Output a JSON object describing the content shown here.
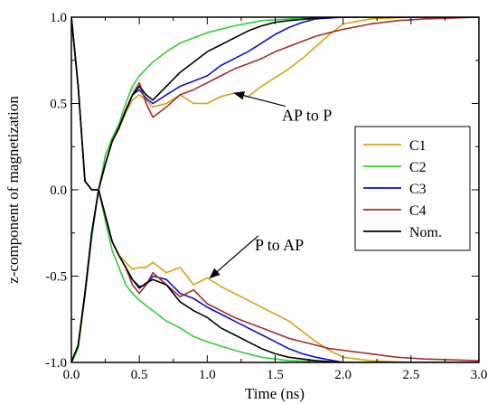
{
  "chart_data": {
    "type": "line",
    "xlabel": "Time (ns)",
    "ylabel": "z-component of magnetization",
    "xlim": [
      0,
      3
    ],
    "ylim": [
      -1,
      1
    ],
    "grid": false,
    "x_ticks": [
      "0.0",
      "0.5",
      "1.0",
      "1.5",
      "2.0",
      "2.5",
      "3.0"
    ],
    "y_ticks": [
      "1.0",
      "0.5",
      "0.0",
      "-0.5",
      "-1.0"
    ],
    "legend": {
      "placement": "right",
      "entries": [
        {
          "name": "C1",
          "color": "#d4a017"
        },
        {
          "name": "C2",
          "color": "#33cc33"
        },
        {
          "name": "C3",
          "color": "#1010cc"
        },
        {
          "name": "C4",
          "color": "#a0302a"
        },
        {
          "name": "Nom.",
          "color": "#000000"
        }
      ]
    },
    "annotations": [
      {
        "text": "AP to P",
        "x": 1.55,
        "y": 0.4,
        "arrow_to": [
          1.2,
          0.56
        ]
      },
      {
        "text": "P to AP",
        "x": 1.35,
        "y": -0.35,
        "arrow_to": [
          1.02,
          -0.51
        ]
      }
    ],
    "series": [
      {
        "name": "C1",
        "color": "#d4a017",
        "transition": "AP to P",
        "points": [
          [
            0,
            -1
          ],
          [
            0.05,
            -0.9
          ],
          [
            0.1,
            -0.6
          ],
          [
            0.15,
            -0.25
          ],
          [
            0.2,
            0
          ],
          [
            0.25,
            0.15
          ],
          [
            0.3,
            0.28
          ],
          [
            0.35,
            0.35
          ],
          [
            0.4,
            0.45
          ],
          [
            0.45,
            0.52
          ],
          [
            0.5,
            0.55
          ],
          [
            0.55,
            0.52
          ],
          [
            0.6,
            0.48
          ],
          [
            0.7,
            0.5
          ],
          [
            0.8,
            0.55
          ],
          [
            0.9,
            0.5
          ],
          [
            1.0,
            0.5
          ],
          [
            1.1,
            0.54
          ],
          [
            1.2,
            0.56
          ],
          [
            1.3,
            0.54
          ],
          [
            1.4,
            0.6
          ],
          [
            1.5,
            0.65
          ],
          [
            1.6,
            0.7
          ],
          [
            1.7,
            0.76
          ],
          [
            1.8,
            0.83
          ],
          [
            1.9,
            0.9
          ],
          [
            2.0,
            0.96
          ],
          [
            2.2,
            0.99
          ],
          [
            2.5,
            1
          ],
          [
            3,
            1
          ]
        ]
      },
      {
        "name": "C2",
        "color": "#33cc33",
        "transition": "AP to P",
        "points": [
          [
            0,
            -1
          ],
          [
            0.05,
            -0.92
          ],
          [
            0.1,
            -0.62
          ],
          [
            0.15,
            -0.28
          ],
          [
            0.2,
            0
          ],
          [
            0.25,
            0.2
          ],
          [
            0.3,
            0.3
          ],
          [
            0.35,
            0.38
          ],
          [
            0.4,
            0.5
          ],
          [
            0.45,
            0.6
          ],
          [
            0.5,
            0.66
          ],
          [
            0.6,
            0.74
          ],
          [
            0.7,
            0.8
          ],
          [
            0.8,
            0.85
          ],
          [
            0.9,
            0.88
          ],
          [
            1.0,
            0.91
          ],
          [
            1.2,
            0.95
          ],
          [
            1.4,
            0.98
          ],
          [
            1.6,
            0.99
          ],
          [
            2.0,
            1
          ],
          [
            3,
            1
          ]
        ]
      },
      {
        "name": "C3",
        "color": "#1010cc",
        "transition": "AP to P",
        "points": [
          [
            0,
            -1
          ],
          [
            0.05,
            -0.9
          ],
          [
            0.1,
            -0.6
          ],
          [
            0.15,
            -0.25
          ],
          [
            0.2,
            0
          ],
          [
            0.25,
            0.15
          ],
          [
            0.3,
            0.28
          ],
          [
            0.35,
            0.36
          ],
          [
            0.4,
            0.46
          ],
          [
            0.45,
            0.55
          ],
          [
            0.5,
            0.58
          ],
          [
            0.55,
            0.53
          ],
          [
            0.6,
            0.5
          ],
          [
            0.7,
            0.55
          ],
          [
            0.8,
            0.6
          ],
          [
            0.9,
            0.63
          ],
          [
            1.0,
            0.66
          ],
          [
            1.1,
            0.72
          ],
          [
            1.2,
            0.76
          ],
          [
            1.3,
            0.8
          ],
          [
            1.4,
            0.85
          ],
          [
            1.5,
            0.9
          ],
          [
            1.6,
            0.94
          ],
          [
            1.7,
            0.97
          ],
          [
            1.8,
            0.99
          ],
          [
            2.0,
            1
          ],
          [
            3,
            1
          ]
        ]
      },
      {
        "name": "C4",
        "color": "#a0302a",
        "transition": "AP to P",
        "points": [
          [
            0,
            -1
          ],
          [
            0.05,
            -0.9
          ],
          [
            0.1,
            -0.6
          ],
          [
            0.15,
            -0.25
          ],
          [
            0.2,
            0
          ],
          [
            0.25,
            0.15
          ],
          [
            0.3,
            0.28
          ],
          [
            0.35,
            0.36
          ],
          [
            0.4,
            0.45
          ],
          [
            0.45,
            0.55
          ],
          [
            0.5,
            0.62
          ],
          [
            0.55,
            0.5
          ],
          [
            0.6,
            0.42
          ],
          [
            0.7,
            0.48
          ],
          [
            0.8,
            0.55
          ],
          [
            0.9,
            0.58
          ],
          [
            1.0,
            0.62
          ],
          [
            1.1,
            0.66
          ],
          [
            1.2,
            0.7
          ],
          [
            1.3,
            0.73
          ],
          [
            1.4,
            0.76
          ],
          [
            1.5,
            0.8
          ],
          [
            1.6,
            0.83
          ],
          [
            1.7,
            0.86
          ],
          [
            1.8,
            0.89
          ],
          [
            1.9,
            0.91
          ],
          [
            2.0,
            0.93
          ],
          [
            2.2,
            0.96
          ],
          [
            2.4,
            0.98
          ],
          [
            2.6,
            0.99
          ],
          [
            3,
            1
          ]
        ]
      },
      {
        "name": "Nom.",
        "color": "#000000",
        "transition": "AP to P",
        "points": [
          [
            0,
            -1
          ],
          [
            0.05,
            -0.9
          ],
          [
            0.1,
            -0.6
          ],
          [
            0.15,
            -0.25
          ],
          [
            0.2,
            0
          ],
          [
            0.25,
            0.15
          ],
          [
            0.3,
            0.28
          ],
          [
            0.35,
            0.36
          ],
          [
            0.4,
            0.46
          ],
          [
            0.45,
            0.55
          ],
          [
            0.5,
            0.6
          ],
          [
            0.55,
            0.55
          ],
          [
            0.6,
            0.52
          ],
          [
            0.7,
            0.6
          ],
          [
            0.8,
            0.68
          ],
          [
            0.9,
            0.74
          ],
          [
            1.0,
            0.8
          ],
          [
            1.1,
            0.84
          ],
          [
            1.2,
            0.88
          ],
          [
            1.3,
            0.92
          ],
          [
            1.4,
            0.95
          ],
          [
            1.5,
            0.97
          ],
          [
            1.6,
            0.98
          ],
          [
            1.8,
            0.995
          ],
          [
            2.0,
            1
          ],
          [
            3,
            1
          ]
        ]
      },
      {
        "name": "C1",
        "color": "#d4a017",
        "transition": "P to AP",
        "points": [
          [
            0,
            1
          ],
          [
            0.05,
            0.6
          ],
          [
            0.1,
            0.05
          ],
          [
            0.15,
            0.0
          ],
          [
            0.2,
            0
          ],
          [
            0.25,
            -0.15
          ],
          [
            0.3,
            -0.3
          ],
          [
            0.35,
            -0.38
          ],
          [
            0.4,
            -0.42
          ],
          [
            0.45,
            -0.46
          ],
          [
            0.5,
            -0.45
          ],
          [
            0.55,
            -0.45
          ],
          [
            0.6,
            -0.42
          ],
          [
            0.7,
            -0.48
          ],
          [
            0.8,
            -0.45
          ],
          [
            0.9,
            -0.55
          ],
          [
            1.0,
            -0.51
          ],
          [
            1.1,
            -0.56
          ],
          [
            1.2,
            -0.6
          ],
          [
            1.3,
            -0.64
          ],
          [
            1.4,
            -0.68
          ],
          [
            1.5,
            -0.72
          ],
          [
            1.6,
            -0.76
          ],
          [
            1.7,
            -0.82
          ],
          [
            1.8,
            -0.88
          ],
          [
            1.9,
            -0.93
          ],
          [
            2.0,
            -0.97
          ],
          [
            2.2,
            -0.99
          ],
          [
            2.5,
            -1
          ],
          [
            3,
            -1
          ]
        ]
      },
      {
        "name": "C2",
        "color": "#33cc33",
        "transition": "P to AP",
        "points": [
          [
            0,
            1
          ],
          [
            0.05,
            0.6
          ],
          [
            0.1,
            0.05
          ],
          [
            0.15,
            0.0
          ],
          [
            0.2,
            0
          ],
          [
            0.25,
            -0.18
          ],
          [
            0.3,
            -0.35
          ],
          [
            0.35,
            -0.45
          ],
          [
            0.4,
            -0.55
          ],
          [
            0.45,
            -0.6
          ],
          [
            0.5,
            -0.64
          ],
          [
            0.6,
            -0.7
          ],
          [
            0.7,
            -0.76
          ],
          [
            0.8,
            -0.8
          ],
          [
            0.9,
            -0.85
          ],
          [
            1.0,
            -0.88
          ],
          [
            1.2,
            -0.93
          ],
          [
            1.4,
            -0.97
          ],
          [
            1.6,
            -0.99
          ],
          [
            2.0,
            -1
          ],
          [
            3,
            -1
          ]
        ]
      },
      {
        "name": "C3",
        "color": "#1010cc",
        "transition": "P to AP",
        "points": [
          [
            0,
            1
          ],
          [
            0.05,
            0.6
          ],
          [
            0.1,
            0.05
          ],
          [
            0.15,
            0.0
          ],
          [
            0.2,
            0
          ],
          [
            0.25,
            -0.15
          ],
          [
            0.3,
            -0.3
          ],
          [
            0.35,
            -0.38
          ],
          [
            0.4,
            -0.45
          ],
          [
            0.45,
            -0.52
          ],
          [
            0.5,
            -0.56
          ],
          [
            0.55,
            -0.55
          ],
          [
            0.6,
            -0.5
          ],
          [
            0.7,
            -0.52
          ],
          [
            0.8,
            -0.6
          ],
          [
            0.9,
            -0.63
          ],
          [
            1.0,
            -0.68
          ],
          [
            1.1,
            -0.72
          ],
          [
            1.2,
            -0.76
          ],
          [
            1.3,
            -0.8
          ],
          [
            1.4,
            -0.84
          ],
          [
            1.5,
            -0.88
          ],
          [
            1.6,
            -0.92
          ],
          [
            1.7,
            -0.95
          ],
          [
            1.8,
            -0.97
          ],
          [
            2.0,
            -1
          ],
          [
            3,
            -1
          ]
        ]
      },
      {
        "name": "C4",
        "color": "#a0302a",
        "transition": "P to AP",
        "points": [
          [
            0,
            1
          ],
          [
            0.05,
            0.6
          ],
          [
            0.1,
            0.05
          ],
          [
            0.15,
            0.0
          ],
          [
            0.2,
            0
          ],
          [
            0.25,
            -0.15
          ],
          [
            0.3,
            -0.3
          ],
          [
            0.35,
            -0.38
          ],
          [
            0.4,
            -0.45
          ],
          [
            0.45,
            -0.55
          ],
          [
            0.5,
            -0.6
          ],
          [
            0.55,
            -0.55
          ],
          [
            0.6,
            -0.48
          ],
          [
            0.7,
            -0.55
          ],
          [
            0.8,
            -0.62
          ],
          [
            0.9,
            -0.58
          ],
          [
            1.0,
            -0.66
          ],
          [
            1.1,
            -0.7
          ],
          [
            1.2,
            -0.74
          ],
          [
            1.3,
            -0.77
          ],
          [
            1.4,
            -0.8
          ],
          [
            1.5,
            -0.83
          ],
          [
            1.6,
            -0.86
          ],
          [
            1.7,
            -0.88
          ],
          [
            1.8,
            -0.9
          ],
          [
            1.9,
            -0.92
          ],
          [
            2.0,
            -0.93
          ],
          [
            2.2,
            -0.95
          ],
          [
            2.4,
            -0.97
          ],
          [
            2.6,
            -0.98
          ],
          [
            3,
            -0.99
          ]
        ]
      },
      {
        "name": "Nom.",
        "color": "#000000",
        "transition": "P to AP",
        "points": [
          [
            0,
            1
          ],
          [
            0.05,
            0.6
          ],
          [
            0.1,
            0.05
          ],
          [
            0.15,
            0.0
          ],
          [
            0.2,
            0
          ],
          [
            0.25,
            -0.15
          ],
          [
            0.3,
            -0.3
          ],
          [
            0.35,
            -0.38
          ],
          [
            0.4,
            -0.45
          ],
          [
            0.45,
            -0.52
          ],
          [
            0.5,
            -0.57
          ],
          [
            0.55,
            -0.54
          ],
          [
            0.6,
            -0.52
          ],
          [
            0.7,
            -0.55
          ],
          [
            0.8,
            -0.65
          ],
          [
            0.9,
            -0.7
          ],
          [
            1.0,
            -0.74
          ],
          [
            1.1,
            -0.8
          ],
          [
            1.2,
            -0.84
          ],
          [
            1.3,
            -0.88
          ],
          [
            1.4,
            -0.92
          ],
          [
            1.5,
            -0.95
          ],
          [
            1.6,
            -0.97
          ],
          [
            1.8,
            -0.99
          ],
          [
            2.0,
            -1
          ],
          [
            3,
            -1
          ]
        ]
      }
    ]
  }
}
